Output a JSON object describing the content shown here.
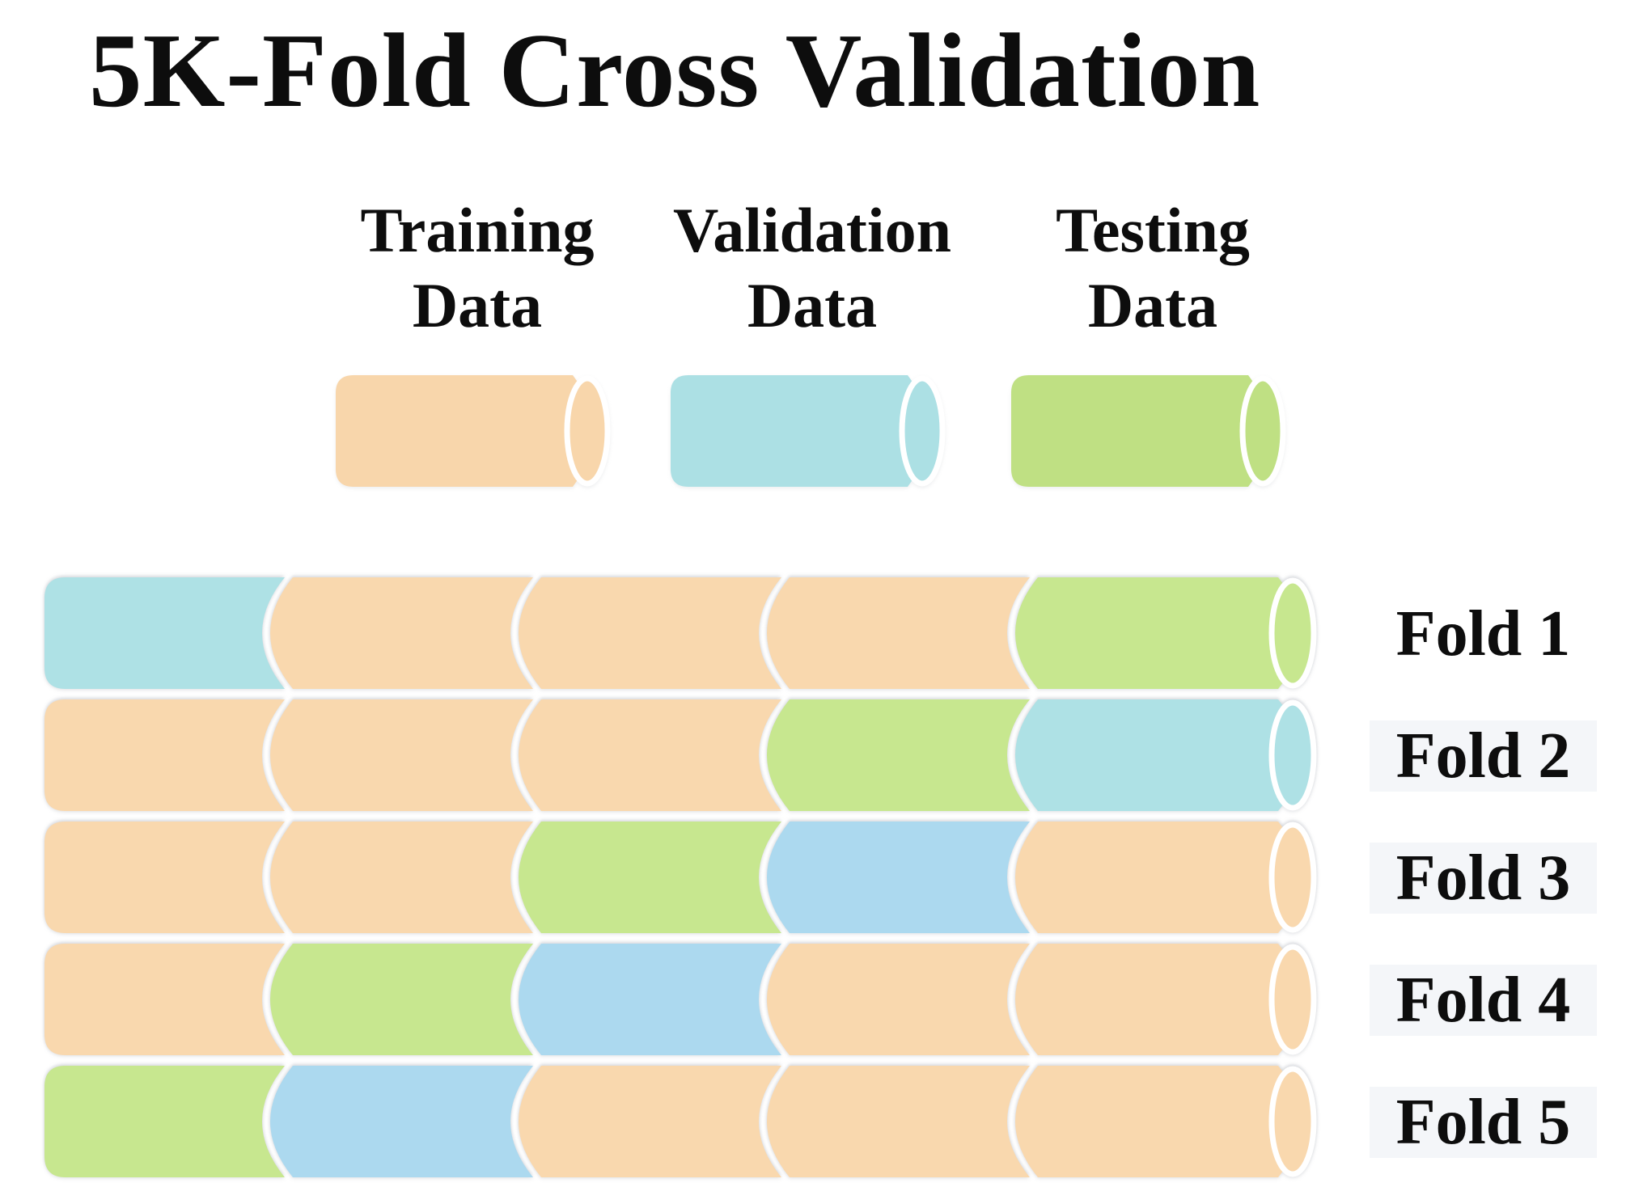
{
  "title": "5K-Fold Cross Validation",
  "legend": [
    {
      "label": "Training Data",
      "color": "#F8D6AB"
    },
    {
      "label": "Validation Data",
      "color": "#ACE0E4"
    },
    {
      "label": "Testing Data",
      "color": "#BFE083"
    }
  ],
  "palette": {
    "training": "#F9D8AE",
    "validation_teal": "#AEE1E5",
    "validation_blue": "#ACD9EF",
    "testing": "#C7E78F",
    "fold_label_bg": "#F4F6F9"
  },
  "folds": [
    {
      "label": "Fold 1",
      "segments": [
        "validation_teal",
        "training",
        "training",
        "training",
        "testing"
      ]
    },
    {
      "label": "Fold 2",
      "segments": [
        "training",
        "training",
        "training",
        "testing",
        "validation_teal"
      ]
    },
    {
      "label": "Fold 3",
      "segments": [
        "training",
        "training",
        "testing",
        "validation_blue",
        "training"
      ]
    },
    {
      "label": "Fold 4",
      "segments": [
        "training",
        "testing",
        "validation_blue",
        "training",
        "training"
      ]
    },
    {
      "label": "Fold 5",
      "segments": [
        "testing",
        "validation_blue",
        "training",
        "training",
        "training"
      ]
    }
  ]
}
